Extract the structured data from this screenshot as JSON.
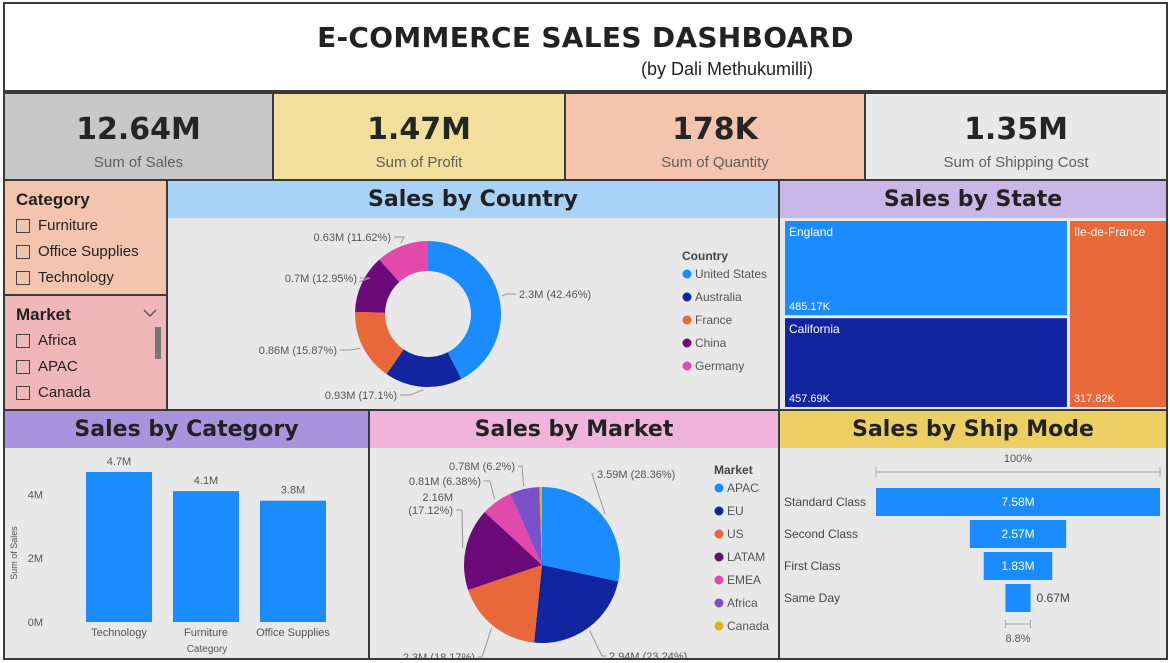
{
  "header": {
    "title": "E-COMMERCE SALES DASHBOARD",
    "subtitle": "(by Dali Methukumilli)"
  },
  "kpis": [
    {
      "value": "12.64M",
      "label": "Sum of Sales",
      "bg": "#c8c8c8"
    },
    {
      "value": "1.47M",
      "label": "Sum of Profit",
      "bg": "#f0e09b"
    },
    {
      "value": "178K",
      "label": "Sum of Quantity",
      "bg": "#f3c4ae"
    },
    {
      "value": "1.35M",
      "label": "Sum of Shipping Cost",
      "bg": "#e8e8e8"
    }
  ],
  "category_slicer": {
    "title": "Category",
    "items": [
      "Furniture",
      "Office Supplies",
      "Technology"
    ]
  },
  "market_slicer": {
    "title": "Market",
    "items": [
      "Africa",
      "APAC",
      "Canada"
    ]
  },
  "colors": {
    "blue": "#1a8cff",
    "navy": "#1225a0",
    "orange": "#e8683a",
    "purple": "#6c0a7a",
    "pink": "#e349ab",
    "violet": "#7a51c8",
    "gold": "#e0b01a",
    "teal_tree": "#1e90ff"
  },
  "chart_data": [
    {
      "type": "pie",
      "variant": "donut",
      "title": "Sales by Country",
      "legend_title": "Country",
      "legend_placement": "right",
      "categories": [
        "United States",
        "Australia",
        "France",
        "China",
        "Germany"
      ],
      "values": [
        2.3,
        0.93,
        0.86,
        0.7,
        0.63
      ],
      "labels": [
        "2.3M (42.46%)",
        "0.93M (17.1%)",
        "0.86M (15.87%)",
        "0.7M (12.95%)",
        "0.63M (11.62%)"
      ],
      "colors": [
        "#1a8cff",
        "#1225a0",
        "#e8683a",
        "#6c0a7a",
        "#e349ab"
      ]
    },
    {
      "type": "treemap",
      "title": "Sales by State",
      "categories": [
        "England",
        "California",
        "Ile-de-France"
      ],
      "values": [
        485.17,
        457.69,
        317.82
      ],
      "labels": [
        "485.17K",
        "457.69K",
        "317.82K"
      ],
      "colors": [
        "#1a8cff",
        "#1225a0",
        "#e8683a"
      ]
    },
    {
      "type": "bar",
      "title": "Sales by Category",
      "categories": [
        "Technology",
        "Furniture",
        "Office Supplies"
      ],
      "values": [
        4.7,
        4.1,
        3.8
      ],
      "labels": [
        "4.7M",
        "4.1M",
        "3.8M"
      ],
      "xlabel": "Category",
      "ylabel": "Sum of Sales",
      "ylim": [
        0,
        5.2
      ],
      "yticks": [
        0,
        2,
        4
      ],
      "ytick_labels": [
        "0M",
        "2M",
        "4M"
      ],
      "grid": false,
      "color": "#1a8cff"
    },
    {
      "type": "pie",
      "title": "Sales by Market",
      "legend_title": "Market",
      "legend_placement": "right",
      "categories": [
        "APAC",
        "EU",
        "US",
        "LATAM",
        "EMEA",
        "Africa",
        "Canada"
      ],
      "values": [
        3.59,
        2.94,
        2.3,
        2.16,
        0.81,
        0.78,
        0.07
      ],
      "labels": [
        "3.59M (28.36%)",
        "2.94M (23.24%)",
        "2.3M (18.17%)",
        "2.16M (17.12%)",
        "0.81M (6.38%)",
        "0.78M (6.2%)",
        ""
      ],
      "colors": [
        "#1a8cff",
        "#1225a0",
        "#e8683a",
        "#6c0a7a",
        "#e349ab",
        "#7a51c8",
        "#e0b01a"
      ]
    },
    {
      "type": "funnel",
      "title": "Sales by Ship Mode",
      "categories": [
        "Standard Class",
        "Second Class",
        "First Class",
        "Same Day"
      ],
      "values": [
        7.58,
        2.57,
        1.83,
        0.67
      ],
      "labels": [
        "7.58M",
        "2.57M",
        "1.83M",
        "0.67M"
      ],
      "top_percent": "100%",
      "bottom_percent": "8.8%",
      "color": "#1a8cff"
    }
  ]
}
